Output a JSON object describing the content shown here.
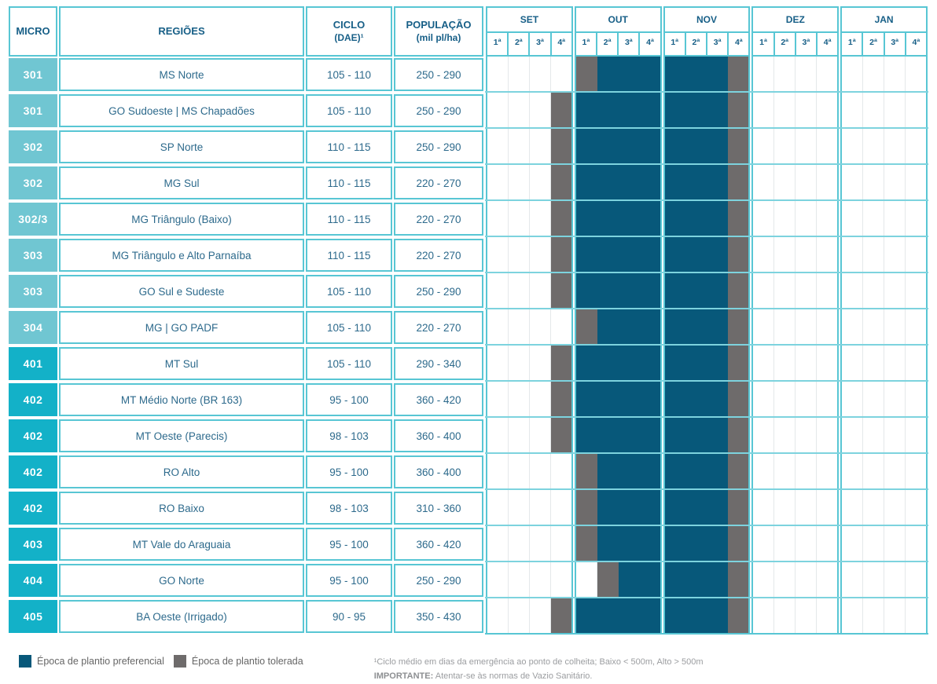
{
  "chart_data": {
    "type": "table",
    "subtype": "planting-window-gantt",
    "title": "",
    "cell_codes": {
      "0": "empty",
      "1": "preferencial",
      "2": "tolerada"
    },
    "header": {
      "micro": "MICRO",
      "regioes": "REGIÕES",
      "ciclo_line1": "CICLO",
      "ciclo_line2": "(DAE)¹",
      "populacao_line1": "POPULAÇÃO",
      "populacao_line2": "(mil pl/ha)",
      "months": [
        "SET",
        "OUT",
        "NOV",
        "DEZ",
        "JAN"
      ],
      "weeks": [
        "1ª",
        "2ª",
        "3ª",
        "4ª"
      ]
    },
    "rows": [
      {
        "micro": "301",
        "group": "light",
        "regiao": "MS Norte",
        "ciclo": "105 - 110",
        "populacao": "250 - 290",
        "weeks": [
          0,
          0,
          0,
          0,
          2,
          1,
          1,
          1,
          1,
          1,
          1,
          2,
          0,
          0,
          0,
          0,
          0,
          0,
          0,
          0
        ]
      },
      {
        "micro": "301",
        "group": "light",
        "regiao": "GO Sudoeste | MS Chapadões",
        "ciclo": "105 - 110",
        "populacao": "250 - 290",
        "weeks": [
          0,
          0,
          0,
          2,
          1,
          1,
          1,
          1,
          1,
          1,
          1,
          2,
          0,
          0,
          0,
          0,
          0,
          0,
          0,
          0
        ]
      },
      {
        "micro": "302",
        "group": "light",
        "regiao": "SP Norte",
        "ciclo": "110 - 115",
        "populacao": "250 - 290",
        "weeks": [
          0,
          0,
          0,
          2,
          1,
          1,
          1,
          1,
          1,
          1,
          1,
          2,
          0,
          0,
          0,
          0,
          0,
          0,
          0,
          0
        ]
      },
      {
        "micro": "302",
        "group": "light",
        "regiao": "MG Sul",
        "ciclo": "110 - 115",
        "populacao": "220 - 270",
        "weeks": [
          0,
          0,
          0,
          2,
          1,
          1,
          1,
          1,
          1,
          1,
          1,
          2,
          0,
          0,
          0,
          0,
          0,
          0,
          0,
          0
        ]
      },
      {
        "micro": "302/3",
        "group": "light",
        "regiao": "MG Triângulo (Baixo)",
        "ciclo": "110 - 115",
        "populacao": "220 - 270",
        "weeks": [
          0,
          0,
          0,
          2,
          1,
          1,
          1,
          1,
          1,
          1,
          1,
          2,
          0,
          0,
          0,
          0,
          0,
          0,
          0,
          0
        ]
      },
      {
        "micro": "303",
        "group": "light",
        "regiao": "MG Triângulo e Alto Parnaíba",
        "ciclo": "110 - 115",
        "populacao": "220 - 270",
        "weeks": [
          0,
          0,
          0,
          2,
          1,
          1,
          1,
          1,
          1,
          1,
          1,
          2,
          0,
          0,
          0,
          0,
          0,
          0,
          0,
          0
        ]
      },
      {
        "micro": "303",
        "group": "light",
        "regiao": "GO Sul e Sudeste",
        "ciclo": "105 - 110",
        "populacao": "250 - 290",
        "weeks": [
          0,
          0,
          0,
          2,
          1,
          1,
          1,
          1,
          1,
          1,
          1,
          2,
          0,
          0,
          0,
          0,
          0,
          0,
          0,
          0
        ]
      },
      {
        "micro": "304",
        "group": "light",
        "regiao": "MG | GO PADF",
        "ciclo": "105 - 110",
        "populacao": "220 - 270",
        "weeks": [
          0,
          0,
          0,
          0,
          2,
          1,
          1,
          1,
          1,
          1,
          1,
          2,
          0,
          0,
          0,
          0,
          0,
          0,
          0,
          0
        ]
      },
      {
        "micro": "401",
        "group": "dark",
        "regiao": "MT Sul",
        "ciclo": "105 - 110",
        "populacao": "290 - 340",
        "weeks": [
          0,
          0,
          0,
          2,
          1,
          1,
          1,
          1,
          1,
          1,
          1,
          2,
          0,
          0,
          0,
          0,
          0,
          0,
          0,
          0
        ]
      },
      {
        "micro": "402",
        "group": "dark",
        "regiao": "MT Médio Norte (BR 163)",
        "ciclo": "95 - 100",
        "populacao": "360 - 420",
        "weeks": [
          0,
          0,
          0,
          2,
          1,
          1,
          1,
          1,
          1,
          1,
          1,
          2,
          0,
          0,
          0,
          0,
          0,
          0,
          0,
          0
        ]
      },
      {
        "micro": "402",
        "group": "dark",
        "regiao": "MT Oeste (Parecis)",
        "ciclo": "98 - 103",
        "populacao": "360 - 400",
        "weeks": [
          0,
          0,
          0,
          2,
          1,
          1,
          1,
          1,
          1,
          1,
          1,
          2,
          0,
          0,
          0,
          0,
          0,
          0,
          0,
          0
        ]
      },
      {
        "micro": "402",
        "group": "dark",
        "regiao": "RO Alto",
        "ciclo": "95 - 100",
        "populacao": "360 - 400",
        "weeks": [
          0,
          0,
          0,
          0,
          2,
          1,
          1,
          1,
          1,
          1,
          1,
          2,
          0,
          0,
          0,
          0,
          0,
          0,
          0,
          0
        ]
      },
      {
        "micro": "402",
        "group": "dark",
        "regiao": "RO Baixo",
        "ciclo": "98 - 103",
        "populacao": "310 - 360",
        "weeks": [
          0,
          0,
          0,
          0,
          2,
          1,
          1,
          1,
          1,
          1,
          1,
          2,
          0,
          0,
          0,
          0,
          0,
          0,
          0,
          0
        ]
      },
      {
        "micro": "403",
        "group": "dark",
        "regiao": "MT Vale do Araguaia",
        "ciclo": "95 - 100",
        "populacao": "360 - 420",
        "weeks": [
          0,
          0,
          0,
          0,
          2,
          1,
          1,
          1,
          1,
          1,
          1,
          2,
          0,
          0,
          0,
          0,
          0,
          0,
          0,
          0
        ]
      },
      {
        "micro": "404",
        "group": "dark",
        "regiao": "GO Norte",
        "ciclo": "95 - 100",
        "populacao": "250 - 290",
        "weeks": [
          0,
          0,
          0,
          0,
          0,
          2,
          1,
          1,
          1,
          1,
          1,
          2,
          0,
          0,
          0,
          0,
          0,
          0,
          0,
          0
        ]
      },
      {
        "micro": "405",
        "group": "dark",
        "regiao": "BA Oeste (Irrigado)",
        "ciclo": "90 - 95",
        "populacao": "350 - 430",
        "weeks": [
          0,
          0,
          0,
          2,
          1,
          1,
          1,
          1,
          1,
          1,
          1,
          2,
          0,
          0,
          0,
          0,
          0,
          0,
          0,
          0
        ]
      }
    ]
  },
  "legend": {
    "preferencial": {
      "label": "Época de plantio preferencial",
      "color": "#07587a"
    },
    "tolerada": {
      "label": "Época de plantio tolerada",
      "color": "#6e6b6b"
    }
  },
  "footnotes": {
    "line1": "¹Ciclo médio em dias da emergência ao ponto de colheita; Baixo < 500m, Alto > 500m",
    "line2_bold": "IMPORTANTE:",
    "line2_rest": " Atentar-se às normas de Vazio Sanitário."
  },
  "colors": {
    "preferencial": "#07587a",
    "tolerada": "#6e6b6b",
    "micro_light": "#70c6d2",
    "micro_dark": "#13b1c8",
    "border_teal": "#58c6d4",
    "header_text": "#175f87",
    "value_text": "#2d6a8c"
  }
}
